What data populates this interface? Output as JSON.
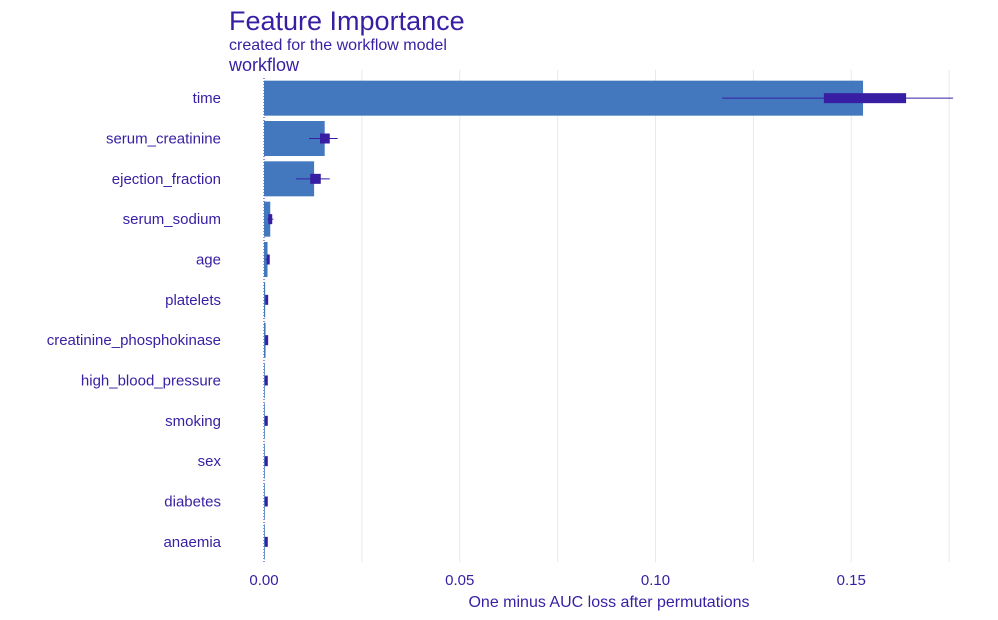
{
  "chart_data": {
    "type": "bar",
    "title": "Feature Importance",
    "subtitle": "created for the workflow model",
    "facet_label": "workflow",
    "xlabel": "One minus AUC loss after permutations",
    "ylabel": "",
    "xlim": [
      0,
      0.177
    ],
    "x_ticks": [
      "0.00",
      "0.05",
      "0.10",
      "0.15"
    ],
    "x_tick_values": [
      0,
      0.05,
      0.1,
      0.15
    ],
    "grid": "vertical",
    "legend": "none",
    "colors": {
      "bar": "#4378bf",
      "box": "#371ea3",
      "text": "#371ea3",
      "grid": "#e8e8ee"
    },
    "features": [
      {
        "name": "time",
        "value": 0.153,
        "whisker": [
          0.117,
          0.176
        ],
        "box": [
          0.143,
          0.164
        ]
      },
      {
        "name": "serum_creatinine",
        "value": 0.0155,
        "whisker": [
          0.0115,
          0.0188
        ],
        "box": [
          0.0143,
          0.0168
        ]
      },
      {
        "name": "ejection_fraction",
        "value": 0.0128,
        "whisker": [
          0.0082,
          0.0168
        ],
        "box": [
          0.0118,
          0.0145
        ]
      },
      {
        "name": "serum_sodium",
        "value": 0.0016,
        "whisker": [
          0.0008,
          0.0024
        ],
        "box": [
          0.0011,
          0.0021
        ]
      },
      {
        "name": "age",
        "value": 0.0009,
        "whisker": [
          0.0004,
          0.0014
        ],
        "box": [
          0.0007,
          0.0012
        ]
      },
      {
        "name": "platelets",
        "value": 0.0003,
        "whisker": [
          0.0002,
          0.0008
        ],
        "box": [
          0.0003,
          0.0007
        ]
      },
      {
        "name": "creatinine_phosphokinase",
        "value": 0.0004,
        "whisker": [
          0.0002,
          0.0008
        ],
        "box": [
          0.0003,
          0.0007
        ]
      },
      {
        "name": "high_blood_pressure",
        "value": 0.0002,
        "whisker": [
          0.0001,
          0.0007
        ],
        "box": [
          0.0002,
          0.0006
        ]
      },
      {
        "name": "smoking",
        "value": 0.0002,
        "whisker": [
          0.0001,
          0.0007
        ],
        "box": [
          0.0002,
          0.0006
        ]
      },
      {
        "name": "sex",
        "value": 0.0002,
        "whisker": [
          0.0001,
          0.0007
        ],
        "box": [
          0.0002,
          0.0006
        ]
      },
      {
        "name": "diabetes",
        "value": 0.0002,
        "whisker": [
          0.0001,
          0.0007
        ],
        "box": [
          0.0002,
          0.0006
        ]
      },
      {
        "name": "anaemia",
        "value": 0.0002,
        "whisker": [
          0.0001,
          0.0007
        ],
        "box": [
          0.0002,
          0.0006
        ]
      }
    ]
  }
}
